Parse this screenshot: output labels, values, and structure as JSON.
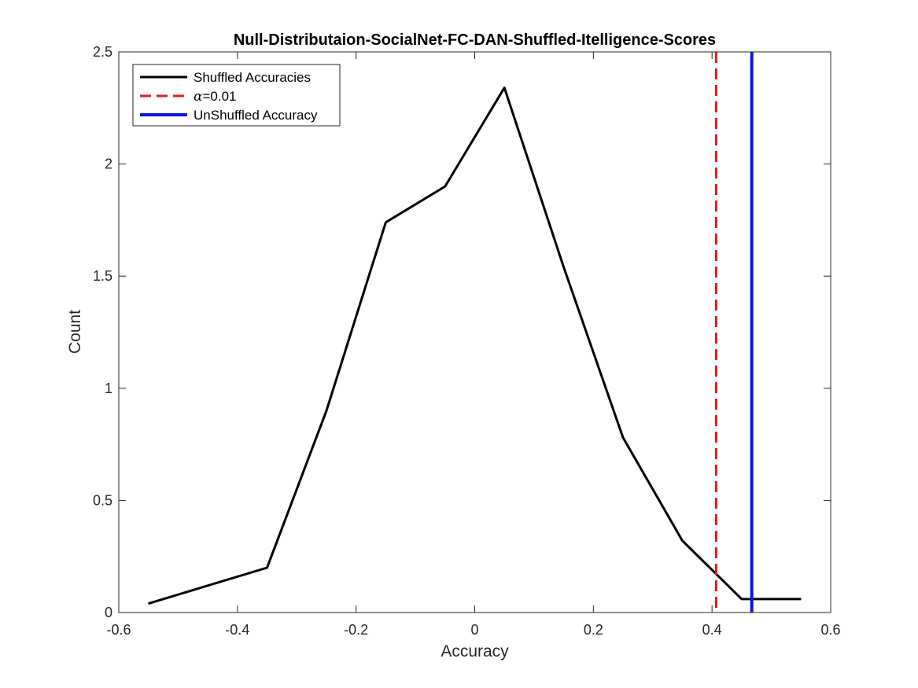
{
  "chart_data": {
    "type": "line",
    "title": "Null-Distributaion-SocialNet-FC-DAN-Shuffled-Itelligence-Scores",
    "xlabel": "Accuracy",
    "ylabel": "Count",
    "xlim": [
      -0.6,
      0.6
    ],
    "ylim": [
      0,
      2.5
    ],
    "xticks": [
      -0.6,
      -0.4,
      -0.2,
      0,
      0.2,
      0.4,
      0.6
    ],
    "xtick_labels": [
      "-0.6",
      "-0.4",
      "-0.2",
      "0",
      "0.2",
      "0.4",
      "0.6"
    ],
    "yticks": [
      0,
      0.5,
      1,
      1.5,
      2,
      2.5
    ],
    "ytick_labels": [
      "0",
      "0.5",
      "1",
      "1.5",
      "2",
      "2.5"
    ],
    "grid": false,
    "legend_position": "top-left",
    "series": [
      {
        "name": "Shuffled Accuracies",
        "color": "#000000",
        "style": "solid",
        "x": [
          -0.55,
          -0.35,
          -0.25,
          -0.15,
          -0.05,
          0.05,
          0.15,
          0.25,
          0.35,
          0.45,
          0.55
        ],
        "y": [
          0.04,
          0.2,
          0.9,
          1.74,
          1.9,
          2.34,
          1.54,
          0.78,
          0.32,
          0.06,
          0.06
        ]
      }
    ],
    "vlines": [
      {
        "name": "α=0.01",
        "legend_symbol": "α",
        "legend_rest": "=0.01",
        "x": 0.407,
        "color": "#e31a1c",
        "style": "dashed"
      },
      {
        "name": "UnShuffled Accuracy",
        "x": 0.467,
        "color": "#0a14e6",
        "style": "solid"
      }
    ]
  }
}
